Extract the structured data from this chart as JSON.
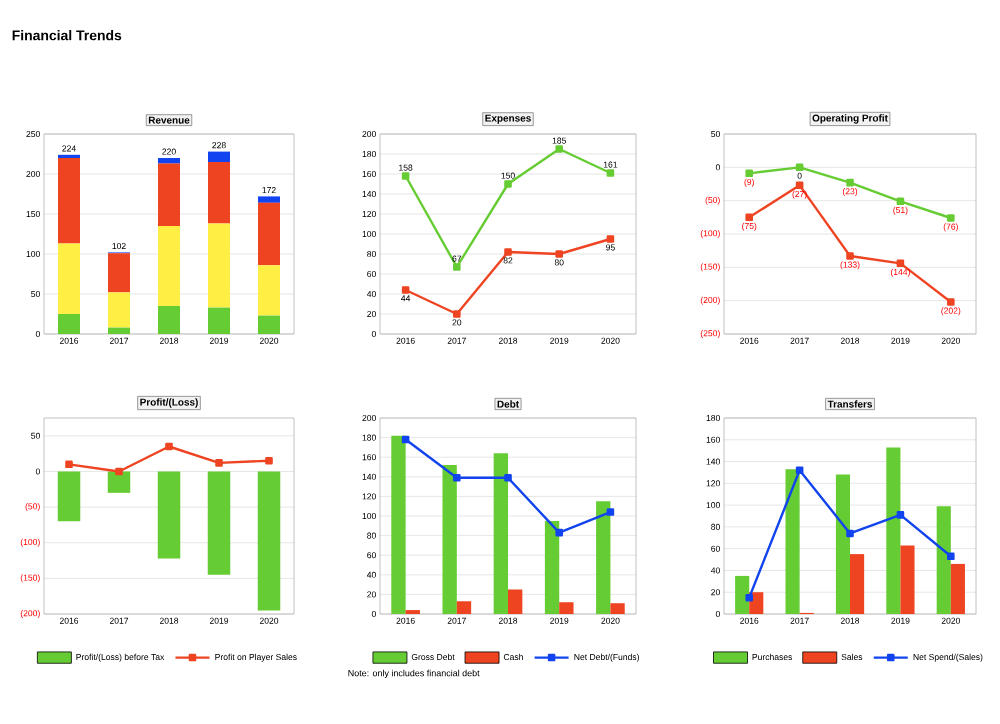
{
  "chart_data": [
    {
      "type": "bar",
      "stacked": true,
      "title": "Revenue",
      "categories": [
        "2016",
        "2017",
        "2018",
        "2019",
        "2020"
      ],
      "series": [
        {
          "color": "#66cc33",
          "values": [
            25,
            8,
            35,
            33,
            23
          ]
        },
        {
          "color": "#ffee44",
          "values": [
            88,
            44,
            100,
            105,
            63
          ]
        },
        {
          "color": "#ee4422",
          "values": [
            107,
            49,
            78,
            77,
            78
          ]
        },
        {
          "color": "#1144ee",
          "values": [
            4,
            1,
            7,
            13,
            8
          ]
        }
      ],
      "totals": [
        "224",
        "102",
        "220",
        "228",
        "172"
      ],
      "ylim": [
        0,
        250
      ],
      "yticks": [
        0,
        50,
        100,
        150,
        200,
        250
      ],
      "grid": "y",
      "annotations": [
        "Financial Trends"
      ]
    },
    {
      "type": "line",
      "title": "Expenses",
      "categories": [
        "2016",
        "2017",
        "2018",
        "2019",
        "2020"
      ],
      "series": [
        {
          "color": "#66cc33",
          "values": [
            158,
            67,
            150,
            185,
            161
          ]
        },
        {
          "color": "#ee4422",
          "values": [
            44,
            20,
            82,
            80,
            95
          ]
        }
      ],
      "data_labels": true,
      "marker": "square",
      "ylim": [
        0,
        200
      ],
      "yticks": [
        0,
        20,
        40,
        60,
        80,
        100,
        120,
        140,
        160,
        180,
        200
      ],
      "grid": "y"
    },
    {
      "type": "line",
      "title": "Operating Profit",
      "categories": [
        "2016",
        "2017",
        "2018",
        "2019",
        "2020"
      ],
      "series": [
        {
          "color": "#66cc33",
          "values": [
            -9,
            0,
            -23,
            -51,
            -76
          ],
          "value_labels": [
            "(9)",
            "0",
            "(23)",
            "(51)",
            "(76)"
          ]
        },
        {
          "color": "#ee4422",
          "values": [
            -75,
            -27,
            -133,
            -144,
            -202
          ],
          "value_labels": [
            "(75)",
            "(27)",
            "(133)",
            "(144)",
            "(202)"
          ]
        }
      ],
      "marker": "square",
      "ylim": [
        -250,
        50
      ],
      "yticks": [
        {
          "value": -250,
          "label": "(250)"
        },
        {
          "value": -200,
          "label": "(200)"
        },
        {
          "value": -150,
          "label": "(150)"
        },
        {
          "value": -100,
          "label": "(100)"
        },
        {
          "value": -50,
          "label": "(50)"
        },
        0,
        50
      ],
      "grid": "y"
    },
    {
      "type": "bar",
      "title": "Profit/(Loss)",
      "categories": [
        "2016",
        "2017",
        "2018",
        "2019",
        "2020"
      ],
      "series": [
        {
          "name": "Profit/(Loss) before Tax",
          "color": "#66cc33",
          "values": [
            -70,
            -30,
            -122,
            -145,
            -195
          ]
        },
        {
          "name": "Profit on Player Sales",
          "type": "line",
          "color": "#ee4422",
          "values": [
            10,
            0,
            35,
            12,
            15
          ]
        }
      ],
      "marker": "square",
      "ylim": [
        -200,
        75
      ],
      "yticks": [
        {
          "value": -200,
          "label": "(200)"
        },
        {
          "value": -150,
          "label": "(150)"
        },
        {
          "value": -100,
          "label": "(100)"
        },
        {
          "value": -50,
          "label": "(50)"
        },
        0,
        50
      ],
      "grid": "y",
      "legend": "bottom"
    },
    {
      "type": "bar",
      "title": "Debt",
      "categories": [
        "2016",
        "2017",
        "2018",
        "2019",
        "2020"
      ],
      "series": [
        {
          "name": "Gross Debt",
          "color": "#66cc33",
          "values": [
            182,
            152,
            164,
            95,
            115
          ]
        },
        {
          "name": "Cash",
          "color": "#ee4422",
          "values": [
            4,
            13,
            25,
            12,
            11
          ]
        },
        {
          "name": "Net Debt/(Funds)",
          "type": "line",
          "color": "#1144ee",
          "values": [
            178,
            139,
            139,
            83,
            104
          ]
        }
      ],
      "marker": "square",
      "ylim": [
        0,
        200
      ],
      "yticks": [
        0,
        20,
        40,
        60,
        80,
        100,
        120,
        140,
        160,
        180,
        200
      ],
      "grid": "y",
      "legend": "bottom",
      "annotations": [
        "Note: only includes financial debt"
      ]
    },
    {
      "type": "bar",
      "title": "Transfers",
      "categories": [
        "2016",
        "2017",
        "2018",
        "2019",
        "2020"
      ],
      "series": [
        {
          "name": "Purchases",
          "color": "#66cc33",
          "values": [
            35,
            133,
            128,
            153,
            99
          ]
        },
        {
          "name": "Sales",
          "color": "#ee4422",
          "values": [
            20,
            1,
            55,
            63,
            46
          ]
        },
        {
          "name": "Net Spend/(Sales)",
          "type": "line",
          "color": "#1144ee",
          "values": [
            15,
            132,
            74,
            91,
            53
          ]
        }
      ],
      "marker": "square",
      "ylim": [
        0,
        180
      ],
      "yticks": [
        0,
        20,
        40,
        60,
        80,
        100,
        120,
        140,
        160,
        180
      ],
      "grid": "y",
      "legend": "bottom"
    }
  ]
}
